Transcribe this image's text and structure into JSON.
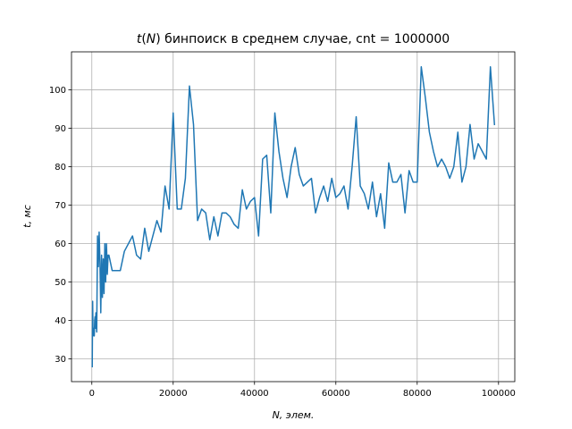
{
  "chart_data": {
    "type": "line",
    "title": "t(N) бинпоиск в среднем случае, cnt = 1000000",
    "title_parts": {
      "pre": "t",
      "open": "(",
      "var": "N",
      "close": ")",
      "rest": " бинпоиск в среднем случае, cnt = 1000000"
    },
    "xlabel": "N, элем.",
    "ylabel": "t, мс",
    "xlim": [
      -5000,
      104000
    ],
    "ylim": [
      24.1,
      109.9
    ],
    "xticks": [
      0,
      20000,
      40000,
      60000,
      80000,
      100000
    ],
    "xtick_labels": [
      "0",
      "20000",
      "40000",
      "60000",
      "80000",
      "100000"
    ],
    "yticks": [
      30,
      40,
      50,
      60,
      70,
      80,
      90,
      100
    ],
    "ytick_labels": [
      "30",
      "40",
      "50",
      "60",
      "70",
      "80",
      "90",
      "100"
    ],
    "grid": true,
    "series": [
      {
        "color": "#1f77b4",
        "x": [
          100,
          200,
          300,
          400,
          500,
          600,
          700,
          800,
          900,
          1000,
          1200,
          1400,
          1600,
          1800,
          2000,
          2200,
          2400,
          2600,
          2800,
          3000,
          3200,
          3400,
          3600,
          3800,
          4000,
          4200,
          4400,
          4600,
          4800,
          5000,
          7000,
          8000,
          10000,
          11000,
          12000,
          13000,
          14000,
          16000,
          17000,
          18000,
          19000,
          20000,
          21000,
          22000,
          23000,
          24000,
          25000,
          26000,
          27000,
          28000,
          29000,
          30000,
          31000,
          32000,
          33000,
          34000,
          35000,
          36000,
          37000,
          38000,
          39000,
          40000,
          41000,
          42000,
          43000,
          44000,
          45000,
          46000,
          47000,
          48000,
          49000,
          50000,
          51000,
          52000,
          53000,
          54000,
          55000,
          56000,
          57000,
          58000,
          59000,
          60000,
          61000,
          62000,
          63000,
          64000,
          65000,
          66000,
          67000,
          68000,
          69000,
          70000,
          71000,
          72000,
          73000,
          74000,
          75000,
          76000,
          77000,
          78000,
          79000,
          80000,
          81000,
          82000,
          83000,
          84000,
          85000,
          86000,
          87000,
          88000,
          89000,
          90000,
          91000,
          92000,
          93000,
          94000,
          95000,
          96000,
          97000,
          98000,
          99000
        ],
        "values": [
          28,
          45,
          36,
          38,
          37,
          36,
          40,
          41,
          38,
          42,
          37,
          62,
          54,
          63,
          55,
          42,
          57,
          46,
          56,
          47,
          60,
          50,
          60,
          52,
          57,
          57,
          56,
          55,
          54,
          53,
          53,
          58,
          62,
          57,
          56,
          64,
          58,
          66,
          63,
          75,
          69,
          94,
          69,
          69,
          77,
          101,
          91,
          66,
          69,
          68,
          61,
          67,
          62,
          68,
          68,
          67,
          65,
          64,
          74,
          69,
          71,
          72,
          62,
          82,
          83,
          68,
          94,
          84,
          77,
          72,
          80,
          85,
          78,
          75,
          76,
          77,
          68,
          72,
          75,
          71,
          77,
          72,
          73,
          75,
          69,
          80,
          93,
          75,
          73,
          69,
          76,
          67,
          73,
          64,
          81,
          76,
          76,
          78,
          68,
          79,
          76,
          76,
          106,
          98,
          89,
          84,
          80,
          82,
          80,
          77,
          80,
          89,
          76,
          80,
          91,
          82,
          86,
          84,
          82,
          106,
          91
        ]
      }
    ]
  }
}
